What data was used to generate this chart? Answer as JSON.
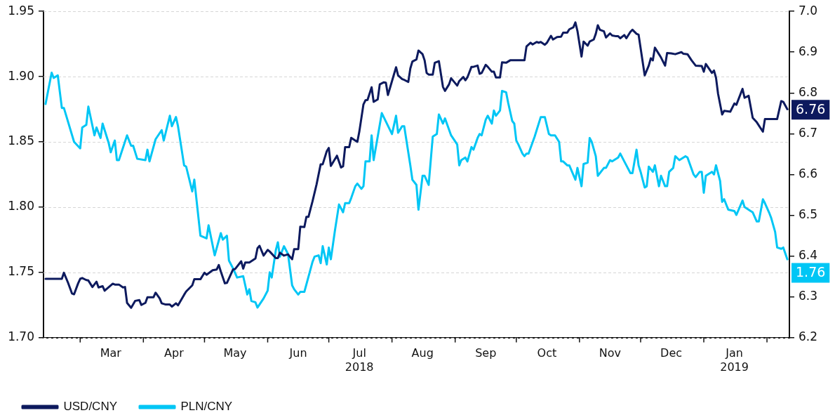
{
  "chart_data": {
    "type": "line",
    "xlim": [
      "2018-02-11",
      "2019-02-12"
    ],
    "xticks": [
      {
        "value": "2018-03-01",
        "label": null
      },
      {
        "value": "2018-03-16",
        "label": "Mar"
      },
      {
        "value": "2018-04-01",
        "label": null
      },
      {
        "value": "2018-04-16",
        "label": "Apr"
      },
      {
        "value": "2018-05-01",
        "label": null
      },
      {
        "value": "2018-05-16",
        "label": "May"
      },
      {
        "value": "2018-06-01",
        "label": null
      },
      {
        "value": "2018-06-16",
        "label": "Jun"
      },
      {
        "value": "2018-07-01",
        "label": null
      },
      {
        "value": "2018-07-16",
        "label": "Jul\n2018"
      },
      {
        "value": "2018-08-01",
        "label": null
      },
      {
        "value": "2018-08-16",
        "label": "Aug"
      },
      {
        "value": "2018-09-01",
        "label": null
      },
      {
        "value": "2018-09-16",
        "label": "Sep"
      },
      {
        "value": "2018-10-01",
        "label": null
      },
      {
        "value": "2018-10-16",
        "label": "Oct"
      },
      {
        "value": "2018-11-01",
        "label": null
      },
      {
        "value": "2018-11-16",
        "label": "Nov"
      },
      {
        "value": "2018-12-01",
        "label": null
      },
      {
        "value": "2018-12-16",
        "label": "Dec"
      },
      {
        "value": "2019-01-01",
        "label": null
      },
      {
        "value": "2019-01-16",
        "label": "Jan\n2019"
      },
      {
        "value": "2019-02-01",
        "label": null
      }
    ],
    "ylim": [
      1.7,
      1.95
    ],
    "yticks": [
      {
        "value": 1.7,
        "label": "1.70"
      },
      1.75,
      {
        "value": 1.8,
        "label": "1.80"
      },
      1.85,
      {
        "value": 1.9,
        "label": "1.90"
      },
      1.95
    ],
    "y2lim": [
      6.2,
      7.0
    ],
    "y2ticks": [
      6.2,
      6.3,
      6.4,
      6.5,
      6.6,
      6.7,
      6.8,
      6.9,
      {
        "value": 7.0,
        "label": "7.0"
      }
    ],
    "grid": "y",
    "legend": "bottom left",
    "line_style": "solid",
    "series": [
      {
        "name": "USD/CNY",
        "color": "#0d1a5e",
        "axis": "y2",
        "x": [
          "2018-02-12",
          "2018-02-20",
          "2018-02-21",
          "2018-02-23",
          "2018-02-25",
          "2018-02-26",
          "2018-02-28",
          "2018-03-01",
          "2018-03-02",
          "2018-03-04",
          "2018-03-05",
          "2018-03-07",
          "2018-03-09",
          "2018-03-10",
          "2018-03-12",
          "2018-03-13",
          "2018-03-17",
          "2018-03-18",
          "2018-03-20",
          "2018-03-22",
          "2018-03-23",
          "2018-03-24",
          "2018-03-26",
          "2018-03-28",
          "2018-03-30",
          "2018-03-31",
          "2018-04-02",
          "2018-04-03",
          "2018-04-06",
          "2018-04-07",
          "2018-04-09",
          "2018-04-10",
          "2018-04-12",
          "2018-04-14",
          "2018-04-15",
          "2018-04-17",
          "2018-04-18",
          "2018-04-21",
          "2018-04-22",
          "2018-04-25",
          "2018-04-26",
          "2018-04-29",
          "2018-05-01",
          "2018-05-02",
          "2018-05-05",
          "2018-05-07",
          "2018-05-08",
          "2018-05-09",
          "2018-05-11",
          "2018-05-12",
          "2018-05-15",
          "2018-05-16",
          "2018-05-19",
          "2018-05-20",
          "2018-05-21",
          "2018-05-23",
          "2018-05-26",
          "2018-05-27",
          "2018-05-28",
          "2018-05-30",
          "2018-06-01",
          "2018-06-02",
          "2018-06-05",
          "2018-06-06",
          "2018-06-07",
          "2018-06-09",
          "2018-06-11",
          "2018-06-13",
          "2018-06-14",
          "2018-06-16",
          "2018-06-17",
          "2018-06-19",
          "2018-06-20",
          "2018-06-21",
          "2018-06-23",
          "2018-06-25",
          "2018-06-27",
          "2018-06-28",
          "2018-06-30",
          "2018-07-01",
          "2018-07-02",
          "2018-07-05",
          "2018-07-07",
          "2018-07-08",
          "2018-07-09",
          "2018-07-11",
          "2018-07-12",
          "2018-07-15",
          "2018-07-16",
          "2018-07-18",
          "2018-07-19",
          "2018-07-20",
          "2018-07-22",
          "2018-07-23",
          "2018-07-25",
          "2018-07-26",
          "2018-07-28",
          "2018-07-29",
          "2018-07-30",
          "2018-08-03",
          "2018-08-04",
          "2018-08-06",
          "2018-08-07",
          "2018-08-09",
          "2018-08-10",
          "2018-08-11",
          "2018-08-13",
          "2018-08-14",
          "2018-08-16",
          "2018-08-17",
          "2018-08-18",
          "2018-08-19",
          "2018-08-21",
          "2018-08-22",
          "2018-08-24",
          "2018-08-26",
          "2018-08-27",
          "2018-08-29",
          "2018-08-30",
          "2018-09-02",
          "2018-09-03",
          "2018-09-05",
          "2018-09-06",
          "2018-09-07",
          "2018-09-09",
          "2018-09-10",
          "2018-09-12",
          "2018-09-13",
          "2018-09-14",
          "2018-09-16",
          "2018-09-17",
          "2018-09-19",
          "2018-09-20",
          "2018-09-21",
          "2018-09-23",
          "2018-09-24",
          "2018-09-26",
          "2018-09-28",
          "2018-10-05",
          "2018-10-06",
          "2018-10-08",
          "2018-10-09",
          "2018-10-11",
          "2018-10-12",
          "2018-10-13",
          "2018-10-15",
          "2018-10-16",
          "2018-10-18",
          "2018-10-19",
          "2018-10-21",
          "2018-10-23",
          "2018-10-24",
          "2018-10-26",
          "2018-10-27",
          "2018-10-29",
          "2018-10-30",
          "2018-10-31",
          "2018-11-02",
          "2018-11-03",
          "2018-11-05",
          "2018-11-06",
          "2018-11-08",
          "2018-11-09",
          "2018-11-10",
          "2018-11-11",
          "2018-11-13",
          "2018-11-14",
          "2018-11-16",
          "2018-11-17",
          "2018-11-19",
          "2018-11-20",
          "2018-11-21",
          "2018-11-23",
          "2018-11-24",
          "2018-11-26",
          "2018-11-27",
          "2018-11-29",
          "2018-11-30",
          "2018-12-03",
          "2018-12-05",
          "2018-12-06",
          "2018-12-07",
          "2018-12-08",
          "2018-12-10",
          "2018-12-11",
          "2018-12-13",
          "2018-12-14",
          "2018-12-16",
          "2018-12-18",
          "2018-12-21",
          "2018-12-22",
          "2018-12-24",
          "2018-12-26",
          "2018-12-28",
          "2018-12-31",
          "2019-01-01",
          "2019-01-02",
          "2019-01-05",
          "2019-01-06",
          "2019-01-07",
          "2019-01-08",
          "2019-01-10",
          "2019-01-11",
          "2019-01-14",
          "2019-01-16",
          "2019-01-17",
          "2019-01-20",
          "2019-01-21",
          "2019-01-23",
          "2019-01-25",
          "2019-01-27",
          "2019-01-30",
          "2019-01-31",
          "2019-02-06",
          "2019-02-08",
          "2019-02-09",
          "2019-02-11"
        ],
        "values": [
          6.344,
          6.344,
          6.359,
          6.335,
          6.308,
          6.306,
          6.333,
          6.344,
          6.346,
          6.341,
          6.34,
          6.324,
          6.337,
          6.323,
          6.326,
          6.315,
          6.332,
          6.33,
          6.33,
          6.323,
          6.324,
          6.285,
          6.273,
          6.29,
          6.292,
          6.28,
          6.285,
          6.299,
          6.299,
          6.31,
          6.296,
          6.284,
          6.281,
          6.281,
          6.276,
          6.284,
          6.279,
          6.305,
          6.313,
          6.328,
          6.343,
          6.343,
          6.359,
          6.354,
          6.365,
          6.367,
          6.378,
          6.362,
          6.333,
          6.334,
          6.367,
          6.368,
          6.387,
          6.369,
          6.384,
          6.384,
          6.394,
          6.419,
          6.425,
          6.401,
          6.415,
          6.411,
          6.395,
          6.395,
          6.408,
          6.401,
          6.404,
          6.392,
          6.417,
          6.417,
          6.472,
          6.471,
          6.496,
          6.496,
          6.534,
          6.576,
          6.625,
          6.625,
          6.657,
          6.665,
          6.621,
          6.646,
          6.617,
          6.62,
          6.667,
          6.667,
          6.69,
          6.68,
          6.706,
          6.772,
          6.782,
          6.783,
          6.814,
          6.778,
          6.784,
          6.821,
          6.826,
          6.825,
          6.795,
          6.863,
          6.843,
          6.834,
          6.832,
          6.827,
          6.86,
          6.877,
          6.882,
          6.904,
          6.895,
          6.88,
          6.849,
          6.845,
          6.845,
          6.874,
          6.878,
          6.815,
          6.805,
          6.821,
          6.836,
          6.818,
          6.829,
          6.839,
          6.831,
          6.838,
          6.864,
          6.864,
          6.867,
          6.847,
          6.849,
          6.869,
          6.864,
          6.852,
          6.852,
          6.838,
          6.838,
          6.875,
          6.874,
          6.88,
          6.88,
          6.914,
          6.923,
          6.919,
          6.925,
          6.923,
          6.925,
          6.918,
          6.923,
          6.94,
          6.931,
          6.937,
          6.938,
          6.948,
          6.948,
          6.956,
          6.961,
          6.973,
          6.952,
          6.889,
          6.926,
          6.916,
          6.926,
          6.931,
          6.945,
          6.966,
          6.955,
          6.951,
          6.936,
          6.946,
          6.941,
          6.939,
          6.939,
          6.934,
          6.942,
          6.934,
          6.95,
          6.955,
          6.945,
          6.943,
          6.843,
          6.867,
          6.885,
          6.88,
          6.911,
          6.895,
          6.887,
          6.867,
          6.898,
          6.897,
          6.895,
          6.9,
          6.896,
          6.895,
          6.88,
          6.867,
          6.866,
          6.852,
          6.871,
          6.849,
          6.855,
          6.837,
          6.798,
          6.747,
          6.756,
          6.754,
          6.774,
          6.771,
          6.81,
          6.788,
          6.793,
          6.739,
          6.728,
          6.705,
          6.736,
          6.736,
          6.78,
          6.778,
          6.76
        ],
        "value_labels": [
          null,
          null,
          null,
          null,
          null,
          null,
          null,
          null,
          null,
          null,
          null,
          null,
          null,
          null,
          null,
          null,
          null,
          null,
          null,
          null,
          null,
          null,
          null,
          null,
          null,
          null,
          null,
          null,
          null,
          null,
          null,
          null,
          null,
          null,
          null,
          null,
          null,
          null,
          null,
          null,
          null,
          null,
          null,
          null,
          null,
          null,
          null,
          null,
          null,
          null,
          null,
          null,
          null,
          null,
          null,
          null,
          null,
          null,
          null,
          null,
          null,
          null,
          null,
          null,
          null,
          null,
          null,
          null,
          null,
          null,
          null,
          null,
          null,
          null,
          null,
          null,
          null,
          null,
          null,
          null,
          null,
          null,
          null,
          null,
          null,
          null,
          null,
          null,
          null,
          null,
          null,
          null,
          null,
          null,
          null,
          null,
          null,
          null,
          null,
          null,
          null,
          null,
          null,
          null,
          null,
          null,
          null,
          null,
          null,
          null,
          null,
          null,
          null,
          null,
          null,
          null,
          null,
          null,
          null,
          null,
          null,
          null,
          null,
          null,
          null,
          null,
          null,
          null,
          null,
          null,
          null,
          null,
          null,
          null,
          null,
          null,
          null,
          null,
          null,
          null,
          null,
          null,
          null,
          null,
          null,
          null,
          null,
          null,
          null,
          null,
          null,
          null,
          null,
          null,
          null,
          null,
          null,
          null,
          null,
          null,
          null,
          null,
          null,
          null,
          null,
          null,
          null,
          null,
          null,
          null,
          null,
          null,
          null,
          null,
          null,
          null,
          null,
          null,
          null,
          null,
          null,
          null,
          null,
          null,
          null,
          null,
          null,
          null,
          null,
          null,
          null,
          null,
          null,
          null,
          null,
          null,
          null,
          null,
          null,
          null,
          null,
          null,
          null,
          null,
          null,
          null,
          null,
          null,
          null,
          null,
          null,
          null,
          null,
          null,
          null,
          null,
          "6.76"
        ]
      },
      {
        "name": "PLN/CNY",
        "color": "#00c6f5",
        "x": [
          "2018-02-12",
          "2018-02-15",
          "2018-02-16",
          "2018-02-18",
          "2018-02-20",
          "2018-02-21",
          "2018-02-26",
          "2018-03-01",
          "2018-03-02",
          "2018-03-04",
          "2018-03-05",
          "2018-03-08",
          "2018-03-09",
          "2018-03-11",
          "2018-03-12",
          "2018-03-15",
          "2018-03-16",
          "2018-03-18",
          "2018-03-19",
          "2018-03-20",
          "2018-03-24",
          "2018-03-26",
          "2018-03-27",
          "2018-03-29",
          "2018-04-02",
          "2018-04-03",
          "2018-04-04",
          "2018-04-07",
          "2018-04-10",
          "2018-04-11",
          "2018-04-14",
          "2018-04-15",
          "2018-04-17",
          "2018-04-18",
          "2018-04-21",
          "2018-04-22",
          "2018-04-25",
          "2018-04-26",
          "2018-04-29",
          "2018-05-02",
          "2018-05-03",
          "2018-05-06",
          "2018-05-09",
          "2018-05-10",
          "2018-05-12",
          "2018-05-13",
          "2018-05-15",
          "2018-05-17",
          "2018-05-20",
          "2018-05-22",
          "2018-05-23",
          "2018-05-24",
          "2018-05-26",
          "2018-05-27",
          "2018-05-30",
          "2018-06-01",
          "2018-06-02",
          "2018-06-03",
          "2018-06-05",
          "2018-06-06",
          "2018-06-07",
          "2018-06-09",
          "2018-06-11",
          "2018-06-13",
          "2018-06-14",
          "2018-06-16",
          "2018-06-17",
          "2018-06-19",
          "2018-06-23",
          "2018-06-24",
          "2018-06-26",
          "2018-06-27",
          "2018-06-28",
          "2018-06-30",
          "2018-07-01",
          "2018-07-02",
          "2018-07-04",
          "2018-07-06",
          "2018-07-08",
          "2018-07-09",
          "2018-07-11",
          "2018-07-12",
          "2018-07-14",
          "2018-07-15",
          "2018-07-17",
          "2018-07-18",
          "2018-07-19",
          "2018-07-21",
          "2018-07-22",
          "2018-07-23",
          "2018-07-27",
          "2018-08-01",
          "2018-08-03",
          "2018-08-04",
          "2018-08-06",
          "2018-08-07",
          "2018-08-10",
          "2018-08-11",
          "2018-08-13",
          "2018-08-14",
          "2018-08-16",
          "2018-08-17",
          "2018-08-19",
          "2018-08-21",
          "2018-08-23",
          "2018-08-24",
          "2018-08-26",
          "2018-08-27",
          "2018-08-30",
          "2018-09-02",
          "2018-09-03",
          "2018-09-04",
          "2018-09-06",
          "2018-09-07",
          "2018-09-09",
          "2018-09-10",
          "2018-09-12",
          "2018-09-13",
          "2018-09-14",
          "2018-09-16",
          "2018-09-17",
          "2018-09-19",
          "2018-09-20",
          "2018-09-21",
          "2018-09-23",
          "2018-09-24",
          "2018-09-26",
          "2018-09-27",
          "2018-09-29",
          "2018-09-30",
          "2018-10-01",
          "2018-10-02",
          "2018-10-04",
          "2018-10-05",
          "2018-10-06",
          "2018-10-07",
          "2018-10-10",
          "2018-10-13",
          "2018-10-15",
          "2018-10-17",
          "2018-10-18",
          "2018-10-20",
          "2018-10-22",
          "2018-10-23",
          "2018-10-24",
          "2018-10-26",
          "2018-10-27",
          "2018-10-30",
          "2018-10-31",
          "2018-11-02",
          "2018-11-03",
          "2018-11-05",
          "2018-11-06",
          "2018-11-07",
          "2018-11-09",
          "2018-11-10",
          "2018-11-13",
          "2018-11-14",
          "2018-11-16",
          "2018-11-17",
          "2018-11-20",
          "2018-11-21",
          "2018-11-23",
          "2018-11-24",
          "2018-11-26",
          "2018-11-27",
          "2018-11-29",
          "2018-11-30",
          "2018-12-01",
          "2018-12-03",
          "2018-12-04",
          "2018-12-05",
          "2018-12-07",
          "2018-12-08",
          "2018-12-10",
          "2018-12-11",
          "2018-12-13",
          "2018-12-14",
          "2018-12-15",
          "2018-12-17",
          "2018-12-18",
          "2018-12-20",
          "2018-12-23",
          "2018-12-24",
          "2018-12-27",
          "2018-12-28",
          "2018-12-30",
          "2018-12-31",
          "2019-01-01",
          "2019-01-02",
          "2019-01-05",
          "2019-01-06",
          "2019-01-07",
          "2019-01-09",
          "2019-01-10",
          "2019-01-11",
          "2019-01-13",
          "2019-01-16",
          "2019-01-17",
          "2019-01-20",
          "2019-01-21",
          "2019-01-24",
          "2019-01-25",
          "2019-01-27",
          "2019-01-28",
          "2019-01-30",
          "2019-01-31",
          "2019-02-02",
          "2019-02-03",
          "2019-02-05",
          "2019-02-06",
          "2019-02-08",
          "2019-02-09",
          "2019-02-11"
        ],
        "values": [
          1.879,
          1.903,
          1.899,
          1.901,
          1.876,
          1.876,
          1.85,
          1.845,
          1.861,
          1.863,
          1.877,
          1.855,
          1.861,
          1.853,
          1.864,
          1.849,
          1.842,
          1.851,
          1.836,
          1.836,
          1.855,
          1.847,
          1.847,
          1.837,
          1.836,
          1.844,
          1.835,
          1.852,
          1.859,
          1.851,
          1.87,
          1.862,
          1.869,
          1.862,
          1.832,
          1.831,
          1.812,
          1.821,
          1.778,
          1.776,
          1.786,
          1.763,
          1.78,
          1.775,
          1.778,
          1.759,
          1.753,
          1.746,
          1.747,
          1.733,
          1.737,
          1.728,
          1.727,
          1.723,
          1.73,
          1.736,
          1.75,
          1.746,
          1.767,
          1.773,
          1.762,
          1.77,
          1.764,
          1.74,
          1.737,
          1.733,
          1.735,
          1.735,
          1.758,
          1.762,
          1.763,
          1.757,
          1.77,
          1.756,
          1.769,
          1.76,
          1.782,
          1.802,
          1.796,
          1.803,
          1.803,
          1.807,
          1.816,
          1.818,
          1.814,
          1.816,
          1.835,
          1.835,
          1.855,
          1.836,
          1.872,
          1.856,
          1.87,
          1.857,
          1.862,
          1.862,
          1.832,
          1.821,
          1.817,
          1.798,
          1.824,
          1.824,
          1.817,
          1.854,
          1.856,
          1.871,
          1.864,
          1.868,
          1.855,
          1.848,
          1.832,
          1.836,
          1.838,
          1.835,
          1.846,
          1.844,
          1.853,
          1.856,
          1.855,
          1.867,
          1.87,
          1.864,
          1.874,
          1.87,
          1.874,
          1.889,
          1.888,
          1.88,
          1.866,
          1.864,
          1.851,
          1.848,
          1.841,
          1.839,
          1.841,
          1.841,
          1.854,
          1.869,
          1.869,
          1.856,
          1.855,
          1.855,
          1.85,
          1.835,
          1.835,
          1.832,
          1.832,
          1.821,
          1.83,
          1.816,
          1.833,
          1.834,
          1.853,
          1.85,
          1.839,
          1.824,
          1.83,
          1.83,
          1.836,
          1.835,
          1.838,
          1.841,
          1.835,
          1.832,
          1.826,
          1.826,
          1.844,
          1.832,
          1.827,
          1.815,
          1.816,
          1.831,
          1.827,
          1.832,
          1.816,
          1.824,
          1.816,
          1.816,
          1.827,
          1.83,
          1.839,
          1.836,
          1.839,
          1.838,
          1.825,
          1.823,
          1.827,
          1.827,
          1.811,
          1.824,
          1.827,
          1.825,
          1.832,
          1.82,
          1.804,
          1.806,
          1.798,
          1.797,
          1.794,
          1.805,
          1.8,
          1.797,
          1.796,
          1.789,
          1.789,
          1.806,
          1.803,
          1.796,
          1.792,
          1.781,
          1.769,
          1.768,
          1.769,
          1.76
        ],
        "value_labels": [
          null,
          null,
          null,
          null,
          null,
          null,
          null,
          null,
          null,
          null,
          null,
          null,
          null,
          null,
          null,
          null,
          null,
          null,
          null,
          null,
          null,
          null,
          null,
          null,
          null,
          null,
          null,
          null,
          null,
          null,
          null,
          null,
          null,
          null,
          null,
          null,
          null,
          null,
          null,
          null,
          null,
          null,
          null,
          null,
          null,
          null,
          null,
          null,
          null,
          null,
          null,
          null,
          null,
          null,
          null,
          null,
          null,
          null,
          null,
          null,
          null,
          null,
          null,
          null,
          null,
          null,
          null,
          null,
          null,
          null,
          null,
          null,
          null,
          null,
          null,
          null,
          null,
          null,
          null,
          null,
          null,
          null,
          null,
          null,
          null,
          null,
          null,
          null,
          null,
          null,
          null,
          null,
          null,
          null,
          null,
          null,
          null,
          null,
          null,
          null,
          null,
          null,
          null,
          null,
          null,
          null,
          null,
          null,
          null,
          null,
          null,
          null,
          null,
          null,
          null,
          null,
          null,
          null,
          null,
          null,
          null,
          null,
          null,
          null,
          null,
          null,
          null,
          null,
          null,
          null,
          null,
          null,
          null,
          null,
          null,
          null,
          null,
          null,
          null,
          null,
          null,
          null,
          null,
          null,
          null,
          null,
          null,
          null,
          null,
          null,
          null,
          null,
          null,
          null,
          null,
          null,
          null,
          null,
          null,
          null,
          null,
          null,
          null,
          null,
          null,
          null,
          null,
          null,
          null,
          null,
          null,
          null,
          null,
          null,
          null,
          null,
          null,
          null,
          null,
          null,
          null,
          null,
          null,
          null,
          null,
          null,
          null,
          null,
          null,
          null,
          null,
          null,
          null,
          null,
          null,
          null,
          null,
          null,
          null,
          null,
          null,
          null,
          null,
          null,
          null,
          null,
          null,
          null,
          null,
          null,
          null,
          null,
          null,
          "1.76"
        ]
      }
    ]
  }
}
